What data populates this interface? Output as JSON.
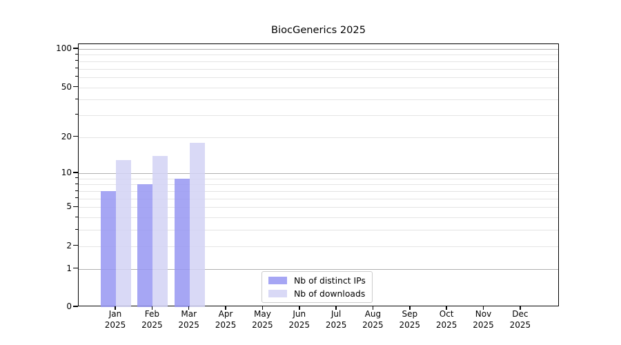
{
  "chart_data": {
    "type": "bar",
    "title": "BiocGenerics 2025",
    "year": "2025",
    "months": [
      "Jan",
      "Feb",
      "Mar",
      "Apr",
      "May",
      "Jun",
      "Jul",
      "Aug",
      "Sep",
      "Oct",
      "Nov",
      "Dec"
    ],
    "series": [
      {
        "name": "Nb of distinct IPs",
        "color": "#9696f2",
        "alpha": 0.85,
        "values": [
          7,
          8,
          9,
          0,
          0,
          0,
          0,
          0,
          0,
          0,
          0,
          0
        ]
      },
      {
        "name": "Nb of downloads",
        "color": "#d2d2f5",
        "alpha": 0.85,
        "values": [
          13,
          14,
          18,
          0,
          0,
          0,
          0,
          0,
          0,
          0,
          0,
          0
        ]
      }
    ],
    "y_axis": {
      "scale": "log1p",
      "ylim": [
        0,
        110
      ],
      "ticks_labeled": [
        0,
        1,
        2,
        5,
        10,
        20,
        50,
        100
      ],
      "ticks_minor": [
        3,
        4,
        6,
        7,
        8,
        9,
        30,
        40,
        60,
        70,
        80,
        90
      ],
      "grid_major": [
        1,
        10,
        100
      ],
      "grid_minor": [
        2,
        3,
        4,
        5,
        6,
        7,
        8,
        9,
        20,
        30,
        40,
        50,
        60,
        70,
        80,
        90
      ]
    },
    "legend": {
      "location": "lower center inside plot"
    },
    "colors": {
      "grid_major": "#b0b0b0",
      "grid_minor": "#e4e4e4",
      "axis": "#000000",
      "text": "#000000",
      "background": "#ffffff"
    }
  }
}
